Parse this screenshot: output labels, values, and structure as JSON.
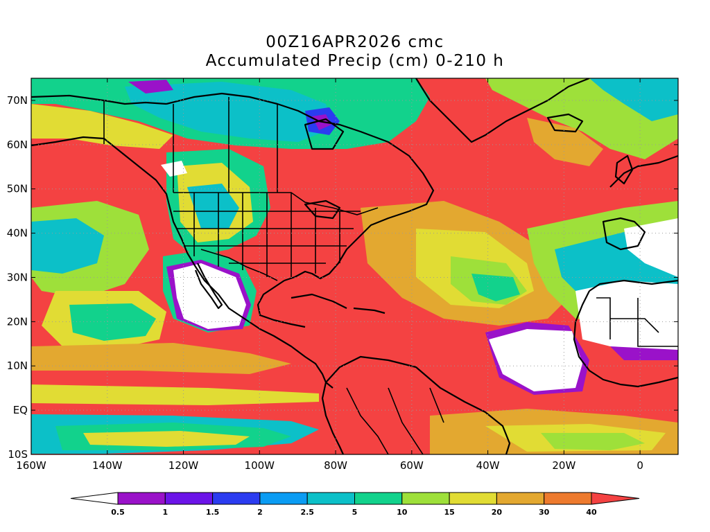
{
  "header": {
    "title": "00Z16APR2026 cmc",
    "subtitle": "Accumulated Precip (cm) 0-210 h"
  },
  "axes": {
    "lon_labels": [
      "160W",
      "140W",
      "120W",
      "100W",
      "80W",
      "60W",
      "40W",
      "20W",
      "0"
    ],
    "lat_labels": [
      "70N",
      "60N",
      "50N",
      "40N",
      "30N",
      "20N",
      "10N",
      "EQ",
      "10S"
    ]
  },
  "colorbar": {
    "levels": [
      "0.5",
      "1",
      "1.5",
      "2",
      "2.5",
      "5",
      "10",
      "15",
      "20",
      "30",
      "40"
    ],
    "colors": [
      "#ffffff",
      "#9a12c9",
      "#6b14e8",
      "#2b3cf0",
      "#0b9cf3",
      "#0cc0c8",
      "#12d28c",
      "#9ee03a",
      "#e1dc34",
      "#e3a830",
      "#ed7a2e",
      "#f44242"
    ]
  },
  "map": {
    "colors": {
      "dry": "#ffffff",
      "very_low": "#9a12c9",
      "low": "#2b3cf0",
      "light": "#0b9cf3",
      "moderate_low": "#0cc0c8",
      "moderate": "#12d28c",
      "medium": "#9ee03a",
      "medium_high": "#e1dc34",
      "high": "#e3a830",
      "very_high": "#ed7a2e",
      "extreme": "#f44242"
    }
  }
}
